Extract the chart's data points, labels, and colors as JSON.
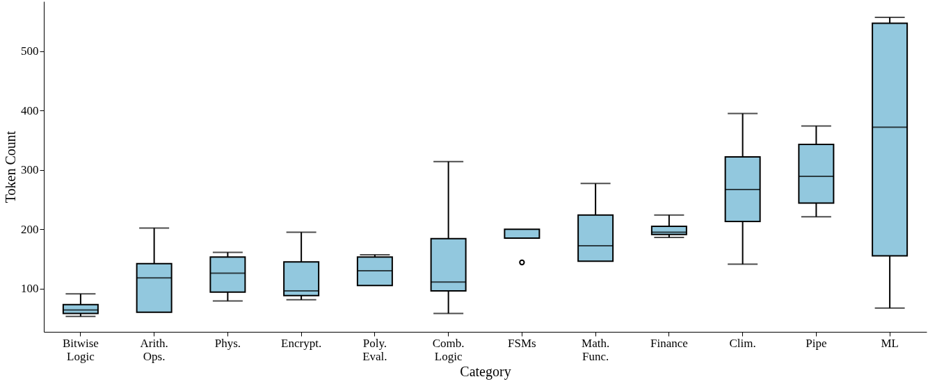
{
  "chart_data": {
    "type": "box",
    "xlabel": "Category",
    "ylabel": "Token Count",
    "categories": [
      "Bitwise\nLogic",
      "Arith.\nOps.",
      "Phys.",
      "Encrypt.",
      "Poly.\nEval.",
      "Comb.\nLogic",
      "FSMs",
      "Math.\nFunc.",
      "Finance",
      "Clim.",
      "Pipe",
      "ML"
    ],
    "color": "#92c8de",
    "boxes": [
      {
        "low": 53,
        "q1": 58,
        "median": 64,
        "q3": 73,
        "high": 91
      },
      {
        "low": 60,
        "q1": 60,
        "median": 118,
        "q3": 142,
        "high": 202
      },
      {
        "low": 79,
        "q1": 94,
        "median": 126,
        "q3": 153,
        "high": 161
      },
      {
        "low": 81,
        "q1": 88,
        "median": 96,
        "q3": 145,
        "high": 195
      },
      {
        "low": 105,
        "q1": 105,
        "median": 130,
        "q3": 153,
        "high": 157
      },
      {
        "low": 58,
        "q1": 96,
        "median": 111,
        "q3": 184,
        "high": 314
      },
      {
        "low": 185,
        "q1": 185,
        "median": 185,
        "q3": 200,
        "high": 200,
        "outliers": [
          144
        ]
      },
      {
        "low": 146,
        "q1": 146,
        "median": 172,
        "q3": 224,
        "high": 277
      },
      {
        "low": 186,
        "q1": 191,
        "median": 195,
        "q3": 205,
        "high": 224
      },
      {
        "low": 141,
        "q1": 213,
        "median": 267,
        "q3": 322,
        "high": 395
      },
      {
        "low": 221,
        "q1": 244,
        "median": 289,
        "q3": 343,
        "high": 374
      },
      {
        "low": 67,
        "q1": 155,
        "median": 372,
        "q3": 547,
        "high": 557
      }
    ],
    "ylim": [
      27,
      584
    ],
    "yticks": [
      100,
      200,
      300,
      400,
      500
    ],
    "grid": false
  }
}
